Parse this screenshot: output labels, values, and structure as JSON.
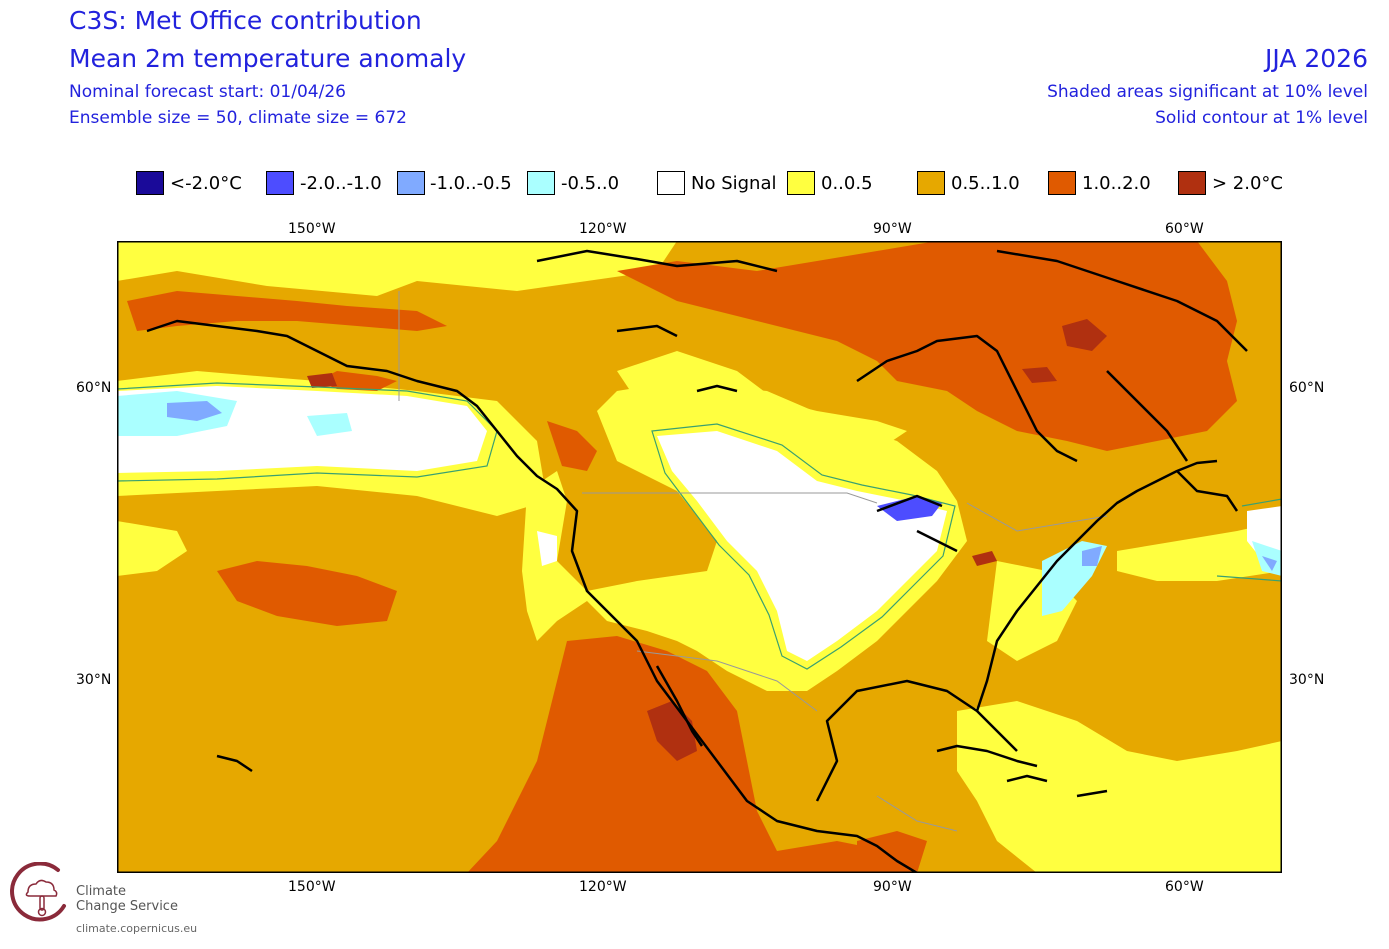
{
  "header": {
    "title": "C3S: Met Office contribution",
    "subtitle": "Mean 2m temperature anomaly",
    "forecast_start": "Nominal forecast start: 01/04/26",
    "ensemble": "Ensemble size = 50, climate size = 672",
    "season": "JJA 2026",
    "sig_note": "Shaded areas significant at 10% level",
    "contour_note": "Solid contour at 1% level"
  },
  "legend": [
    {
      "label": "<-2.0°C",
      "color": "#1a0a99"
    },
    {
      "label": "-2.0..-1.0",
      "color": "#4d4dff"
    },
    {
      "label": "-1.0..-0.5",
      "color": "#80aaff"
    },
    {
      "label": "-0.5..0",
      "color": "#aaffff"
    },
    {
      "label": "No Signal",
      "color": "#ffffff"
    },
    {
      "label": "0..0.5",
      "color": "#ffff40"
    },
    {
      "label": "0.5..1.0",
      "color": "#e6a800"
    },
    {
      "label": "1.0..2.0",
      "color": "#e05a00"
    },
    {
      "label": "> 2.0°C",
      "color": "#b03010"
    }
  ],
  "axes": {
    "top": [
      "150°W",
      "120°W",
      "90°W",
      "60°W"
    ],
    "bottom": [
      "150°W",
      "120°W",
      "90°W",
      "60°W"
    ],
    "left": [
      "60°N",
      "30°N"
    ],
    "right": [
      "60°N",
      "30°N"
    ]
  },
  "logo": {
    "line1": "Climate",
    "line2": "Change Service",
    "url": "climate.copernicus.eu"
  }
}
